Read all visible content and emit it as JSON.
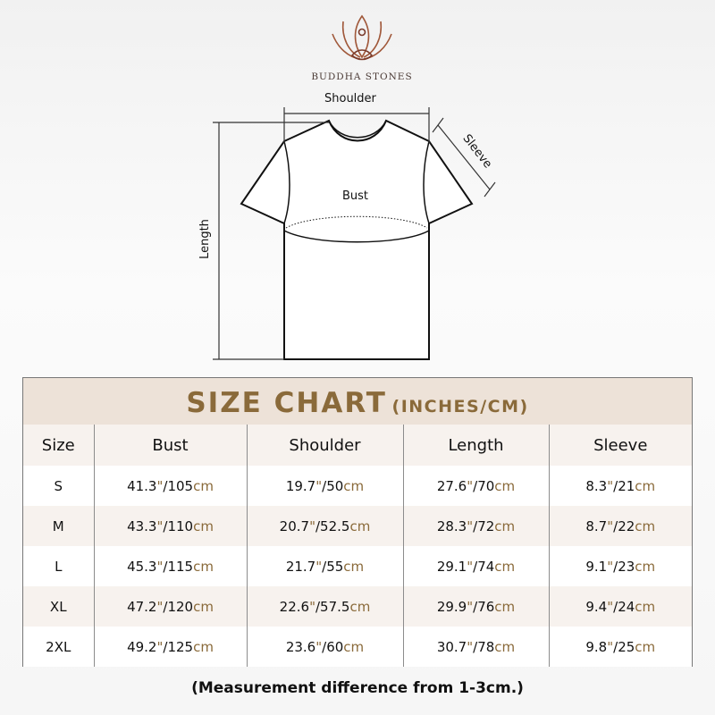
{
  "brand": {
    "name": "BUDDHA STONES",
    "logo_icon": "lotus-meditation-icon"
  },
  "diagram": {
    "shoulder": "Shoulder",
    "sleeve": "Sleeve",
    "bust": "Bust",
    "length": "Length"
  },
  "table": {
    "title": "SIZE CHART",
    "title_units": "(INCHES/CM)",
    "headers": [
      "Size",
      "Bust",
      "Shoulder",
      "Length",
      "Sleeve"
    ],
    "units": {
      "inch": "\"",
      "sep": "/",
      "cm": "cm"
    },
    "rows": [
      {
        "size": "S",
        "values": [
          {
            "in": "41.3",
            "cm": "105"
          },
          {
            "in": "19.7",
            "cm": "50"
          },
          {
            "in": "27.6",
            "cm": "70"
          },
          {
            "in": "8.3",
            "cm": "21"
          }
        ]
      },
      {
        "size": "M",
        "values": [
          {
            "in": "43.3",
            "cm": "110"
          },
          {
            "in": "20.7",
            "cm": "52.5"
          },
          {
            "in": "28.3",
            "cm": "72"
          },
          {
            "in": "8.7",
            "cm": "22"
          }
        ]
      },
      {
        "size": "L",
        "values": [
          {
            "in": "45.3",
            "cm": "115"
          },
          {
            "in": "21.7",
            "cm": "55"
          },
          {
            "in": "29.1",
            "cm": "74"
          },
          {
            "in": "9.1",
            "cm": "23"
          }
        ]
      },
      {
        "size": "XL",
        "values": [
          {
            "in": "47.2",
            "cm": "120"
          },
          {
            "in": "22.6",
            "cm": "57.5"
          },
          {
            "in": "29.9",
            "cm": "76"
          },
          {
            "in": "9.4",
            "cm": "24"
          }
        ]
      },
      {
        "size": "2XL",
        "values": [
          {
            "in": "49.2",
            "cm": "125"
          },
          {
            "in": "23.6",
            "cm": "60"
          },
          {
            "in": "30.7",
            "cm": "78"
          },
          {
            "in": "9.8",
            "cm": "25"
          }
        ]
      }
    ],
    "colors": {
      "accent": "#8a6a3a",
      "header_bg": "#ede2d8",
      "row_alt": "#f7f2ee"
    }
  },
  "footer": "(Measurement difference from 1-3cm.)"
}
